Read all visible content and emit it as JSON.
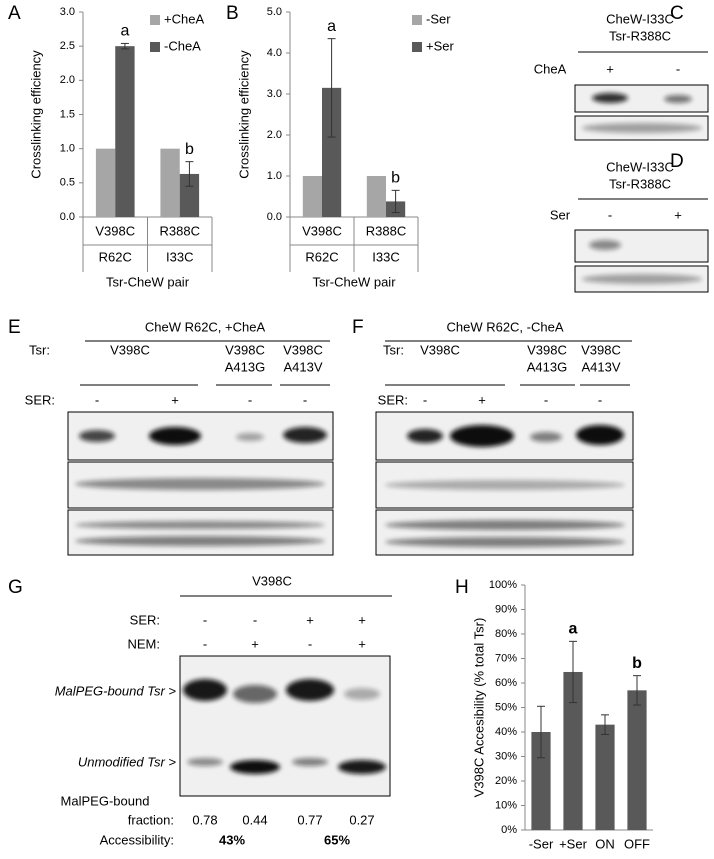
{
  "chart_data": [
    {
      "type": "bar",
      "panel": "A",
      "ylabel": "Crosslinking efficiency",
      "xlabel": "Tsr-CheW pair",
      "categories": [
        [
          "V398C",
          "R62C"
        ],
        [
          "R388C",
          "I33C"
        ]
      ],
      "series": [
        {
          "name": "+CheA",
          "color": "#a6a6a6",
          "values": [
            1.0,
            1.0
          ]
        },
        {
          "name": "-CheA",
          "color": "#595959",
          "values": [
            2.5,
            0.63
          ],
          "errors": [
            0.04,
            0.18
          ]
        }
      ],
      "annotations": [
        "a",
        "b"
      ],
      "ylim": [
        0,
        3
      ],
      "yticks": [
        {
          "value": 0,
          "label": "0.0"
        },
        {
          "value": 0.5,
          "label": "0.5"
        },
        {
          "value": 1,
          "label": "1.0"
        },
        {
          "value": 1.5,
          "label": "1.5"
        },
        {
          "value": 2,
          "label": "2.0"
        },
        {
          "value": 2.5,
          "label": "2.5"
        },
        {
          "value": 3,
          "label": "3.0"
        }
      ]
    },
    {
      "type": "bar",
      "panel": "B",
      "ylabel": "Crosslinking efficiency",
      "xlabel": "Tsr-CheW pair",
      "categories": [
        [
          "V398C",
          "R62C"
        ],
        [
          "R388C",
          "I33C"
        ]
      ],
      "series": [
        {
          "name": "-Ser",
          "color": "#a6a6a6",
          "values": [
            1.0,
            1.0
          ]
        },
        {
          "name": "+Ser",
          "color": "#595959",
          "values": [
            3.15,
            0.38
          ],
          "errors": [
            1.2,
            0.27
          ]
        }
      ],
      "annotations": [
        "a",
        "b"
      ],
      "ylim": [
        0,
        5
      ],
      "yticks": [
        {
          "value": 0,
          "label": "0.0"
        },
        {
          "value": 1,
          "label": "1.0"
        },
        {
          "value": 2,
          "label": "2.0"
        },
        {
          "value": 3,
          "label": "3.0"
        },
        {
          "value": 4,
          "label": "4.0"
        },
        {
          "value": 5,
          "label": "5.0"
        }
      ]
    },
    {
      "type": "bar",
      "panel": "H",
      "ylabel": "V398C Accesibility (% total Tsr)",
      "categories": [
        "-Ser",
        "+Ser",
        "ON",
        "OFF"
      ],
      "series": [
        {
          "color": "#595959",
          "values": [
            40,
            64.5,
            43,
            57
          ],
          "errors": [
            10.5,
            12.5,
            4,
            6
          ]
        }
      ],
      "annotations": [
        null,
        "a",
        null,
        "b"
      ],
      "ylim": [
        0,
        100
      ],
      "yticks": [
        {
          "value": 0,
          "label": "0%"
        },
        {
          "value": 10,
          "label": "10%"
        },
        {
          "value": 20,
          "label": "20%"
        },
        {
          "value": 30,
          "label": "30%"
        },
        {
          "value": 40,
          "label": "40%"
        },
        {
          "value": 50,
          "label": "50%"
        },
        {
          "value": 60,
          "label": "60%"
        },
        {
          "value": 70,
          "label": "70%"
        },
        {
          "value": 80,
          "label": "80%"
        },
        {
          "value": 90,
          "label": "90%"
        },
        {
          "value": 100,
          "label": "100%"
        }
      ]
    }
  ],
  "panels": {
    "C": {
      "label": "C",
      "construct": [
        "CheW-I33C",
        "Tsr-R388C"
      ],
      "condition": "CheA",
      "lanes": [
        "+",
        "-"
      ]
    },
    "D": {
      "label": "D",
      "construct": [
        "CheW-I33C",
        "Tsr-R388C"
      ],
      "condition": "Ser",
      "lanes": [
        "-",
        "+"
      ]
    },
    "E": {
      "label": "E",
      "title": "CheW R62C, +CheA",
      "tsr_label": "Tsr:",
      "mutants": [
        [
          "V398C"
        ],
        [
          "V398C",
          "A413G"
        ],
        [
          "V398C",
          "A413V"
        ]
      ],
      "ser_label": "SER:",
      "lanes": [
        "-",
        "+",
        "-",
        "-"
      ]
    },
    "F": {
      "label": "F",
      "title": "CheW R62C, -CheA",
      "tsr_label": "Tsr:",
      "mutants": [
        [
          "V398C"
        ],
        [
          "V398C",
          "A413G"
        ],
        [
          "V398C",
          "A413V"
        ]
      ],
      "ser_label": "SER:",
      "lanes": [
        "-",
        "+",
        "-",
        "-"
      ]
    },
    "G": {
      "label": "G",
      "construct": "V398C",
      "rows": [
        {
          "name": "SER:",
          "lanes": [
            "-",
            "-",
            "+",
            "+"
          ]
        },
        {
          "name": "NEM:",
          "lanes": [
            "-",
            "+",
            "-",
            "+"
          ]
        }
      ],
      "bands": [
        "MalPEG-bound Tsr >",
        "Unmodified Tsr >"
      ],
      "fraction_label": [
        "MalPEG-bound",
        "fraction:"
      ],
      "fractions": [
        0.78,
        0.44,
        0.77,
        0.27
      ],
      "accessibility_label": "Accessibility:",
      "accessibility": [
        "43%",
        "65%"
      ]
    }
  }
}
